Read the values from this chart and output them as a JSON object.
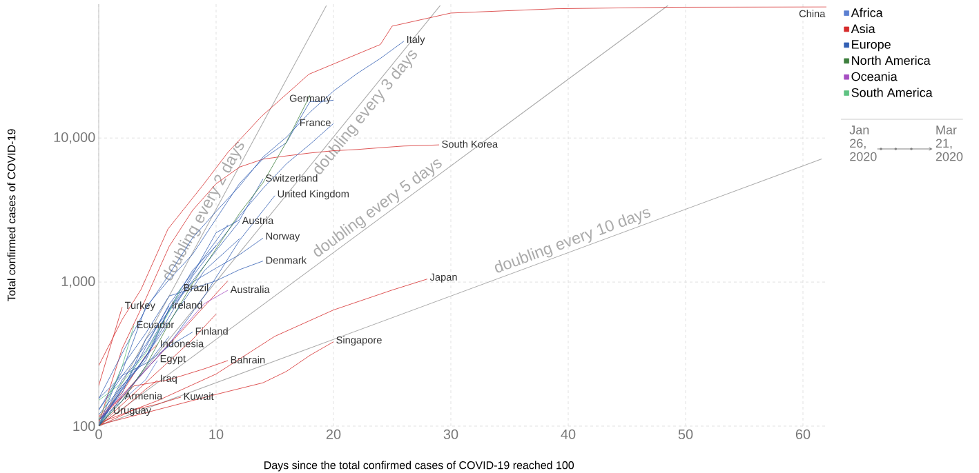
{
  "chart_data": {
    "type": "line",
    "xlabel": "Days since the total confirmed cases of COVID-19 reached 100",
    "ylabel": "Total confirmed cases of COVID-19",
    "xlim": [
      0,
      62
    ],
    "xticks": [
      0,
      10,
      20,
      30,
      40,
      50,
      60
    ],
    "ylim": [
      100,
      85000
    ],
    "yticks": [
      100,
      {
        "value": 1000,
        "label": "1,000"
      },
      {
        "value": 10000,
        "label": "10,000"
      }
    ],
    "log": "y",
    "grid": true,
    "legend": "right",
    "series": [
      {
        "name": "Africa",
        "color": "#5b7fd1",
        "x": [
          0,
          2,
          4,
          5
        ],
        "values": [
          110,
          150,
          210,
          285
        ]
      },
      {
        "name": "Asia",
        "color": "#d62c2c",
        "x": [
          0,
          2,
          3.6,
          5.9,
          8.9,
          11,
          13.9,
          17.9,
          24,
          25,
          30,
          39,
          49,
          62,
          null,
          0,
          2,
          4,
          6,
          8,
          10,
          12,
          14,
          16,
          18,
          20,
          22,
          24,
          26,
          28,
          29,
          null,
          0,
          5,
          10,
          15,
          20,
          25,
          28,
          null,
          0,
          5,
          10,
          14,
          16,
          18,
          20,
          null,
          0,
          3,
          6,
          9,
          11,
          null,
          0,
          3,
          5,
          7,
          null,
          0,
          2,
          4,
          5,
          null,
          0,
          1,
          2,
          null,
          0,
          1,
          2,
          null,
          0,
          2,
          4,
          5,
          null,
          0,
          4,
          8,
          10,
          null,
          0,
          5,
          11
        ],
        "values": [
          263,
          550,
          887,
          2335,
          4730,
          7940,
          14200,
          27700,
          44600,
          59800,
          73700,
          79000,
          80900,
          81300,
          null,
          104,
          346,
          763,
          1766,
          3150,
          4812,
          6284,
          7134,
          7513,
          7869,
          8162,
          8320,
          8565,
          8799,
          8897,
          8961,
          null,
          105,
          150,
          230,
          420,
          640,
          880,
          1050,
          null,
          102,
          130,
          166,
          200,
          240,
          310,
          385,
          null,
          110,
          190,
          210,
          250,
          285,
          null,
          100,
          130,
          142,
          159,
          null,
          101,
          130,
          180,
          208,
          null,
          115,
          136,
          160,
          null,
          191,
          359,
          670,
          null,
          117,
          172,
          309,
          369,
          null,
          100,
          200,
          400,
          600,
          null,
          110,
          300,
          1020
        ]
      },
      {
        "name": "Europe",
        "color": "#3360b4",
        "x": [
          0,
          2,
          4,
          6,
          8,
          10,
          12,
          14,
          16,
          18,
          20,
          22,
          24,
          26,
          null,
          0,
          2,
          4,
          6,
          8,
          10,
          12,
          14,
          16,
          17,
          18,
          19,
          20,
          null,
          0,
          2,
          4,
          6,
          8,
          10,
          12,
          14,
          16,
          18,
          20,
          null,
          0,
          2,
          4,
          6,
          8,
          10,
          12,
          14,
          null,
          0,
          3,
          6,
          9,
          12,
          15,
          null,
          0,
          2,
          4,
          6,
          8,
          10,
          12,
          null,
          0,
          2,
          4,
          6,
          8,
          10,
          12,
          14,
          null,
          0,
          2,
          4,
          6,
          8,
          10,
          12,
          14,
          null,
          0,
          2,
          4,
          6,
          null,
          0,
          2,
          4,
          6,
          8,
          null,
          0,
          3,
          6,
          9,
          11,
          null,
          0,
          4,
          8,
          10,
          null,
          0,
          5,
          9,
          12,
          null,
          0,
          2,
          4,
          6
        ],
        "values": [
          155,
          320,
          650,
          1130,
          2030,
          3090,
          4640,
          7380,
          10150,
          15110,
          21160,
          27980,
          35710,
          47020,
          null,
          130,
          240,
          670,
          1040,
          1560,
          2750,
          4840,
          7170,
          9300,
          13000,
          17900,
          17900,
          18300,
          null,
          100,
          191,
          285,
          653,
          1209,
          1784,
          2876,
          4469,
          6633,
          9043,
          12612,
          null,
          100,
          210,
          330,
          640,
          1130,
          2200,
          2700,
          5200,
          null,
          100,
          200,
          370,
          800,
          1950,
          3980,
          null,
          100,
          180,
          300,
          650,
          1020,
          1650,
          2640,
          null,
          110,
          170,
          400,
          630,
          1000,
          1250,
          1550,
          2020,
          null,
          100,
          260,
          440,
          800,
          900,
          1020,
          1220,
          1400,
          null,
          129,
          223,
          366,
          683,
          null,
          155,
          225,
          272,
          359,
          450,
          null,
          100,
          250,
          700,
          1500,
          2500,
          null,
          120,
          300,
          1100,
          1800,
          null,
          105,
          400,
          1200,
          2000,
          null,
          100,
          150,
          260,
          420
        ]
      },
      {
        "name": "North America",
        "color": "#3d7f3d",
        "x": [
          0,
          2,
          4,
          6,
          8,
          10,
          12,
          14,
          16,
          18
        ],
        "values": [
          100,
          150,
          260,
          520,
          980,
          1700,
          3000,
          4900,
          9400,
          19800
        ]
      },
      {
        "name": "Oceania",
        "color": "#a64fc2",
        "x": [
          0,
          3,
          6,
          9,
          11
        ],
        "values": [
          112,
          197,
          375,
          709,
          877
        ]
      },
      {
        "name": "South America",
        "color": "#5fc383",
        "x": [
          0,
          2,
          4,
          6,
          7,
          null,
          0,
          1,
          2,
          3,
          null,
          0,
          1
        ],
        "values": [
          151,
          200,
          321,
          621,
          904,
          null,
          110,
          168,
          260,
          500,
          null,
          105,
          125
        ]
      },
      {
        "name": "doubling every 2 days",
        "type": "line",
        "color": "#ababab",
        "x": [
          0,
          19.4
        ],
        "values": [
          100,
          83180
        ]
      },
      {
        "name": "doubling every 3 days",
        "type": "line",
        "color": "#ababab",
        "x": [
          0,
          29.1
        ],
        "values": [
          100,
          83180
        ]
      },
      {
        "name": "doubling every 5 days",
        "type": "line",
        "color": "#ababab",
        "x": [
          0,
          48.5
        ],
        "values": [
          100,
          83180
        ]
      },
      {
        "name": "doubling every 10 days",
        "type": "line",
        "color": "#ababab",
        "x": [
          0,
          61.6
        ],
        "values": [
          100,
          7150
        ]
      }
    ],
    "annotations": [
      {
        "text": "China",
        "x": 62,
        "y": 81300
      },
      {
        "text": "Italy",
        "x": 26,
        "y": 47020
      },
      {
        "text": "Germany",
        "x": 20,
        "y": 18300
      },
      {
        "text": "France",
        "x": 20,
        "y": 12612
      },
      {
        "text": "South Korea",
        "x": 29,
        "y": 8961
      },
      {
        "text": "Switzerland",
        "x": 14,
        "y": 5200
      },
      {
        "text": "United Kingdom",
        "x": 15,
        "y": 3980
      },
      {
        "text": "Austria",
        "x": 12,
        "y": 2640
      },
      {
        "text": "Norway",
        "x": 14,
        "y": 2020
      },
      {
        "text": "Denmark",
        "x": 14,
        "y": 1400
      },
      {
        "text": "Australia",
        "x": 11,
        "y": 877
      },
      {
        "text": "Japan",
        "x": 28,
        "y": 1050
      },
      {
        "text": "Brazil",
        "x": 7,
        "y": 904
      },
      {
        "text": "Ireland",
        "x": 6,
        "y": 683
      },
      {
        "text": "Turkey",
        "x": 2,
        "y": 670
      },
      {
        "text": "Ecuador",
        "x": 3,
        "y": 500
      },
      {
        "text": "Finland",
        "x": 8,
        "y": 450
      },
      {
        "text": "Indonesia",
        "x": 5,
        "y": 369
      },
      {
        "text": "Egypt",
        "x": 5,
        "y": 285
      },
      {
        "text": "Bahrain",
        "x": 11,
        "y": 285
      },
      {
        "text": "Singapore",
        "x": 20,
        "y": 385
      },
      {
        "text": "Iraq",
        "x": 5,
        "y": 208
      },
      {
        "text": "Kuwait",
        "x": 7,
        "y": 159
      },
      {
        "text": "Armenia",
        "x": 2,
        "y": 160
      },
      {
        "text": "Uruguay",
        "x": 1,
        "y": 125
      },
      "Jan 26, 2020",
      "Mar 21, 2020"
    ]
  }
}
